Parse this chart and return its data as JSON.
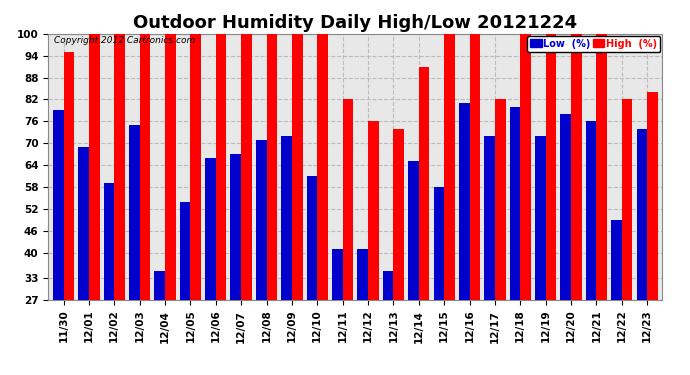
{
  "title": "Outdoor Humidity Daily High/Low 20121224",
  "copyright": "Copyright 2012 Cartronics.com",
  "dates": [
    "11/30",
    "12/01",
    "12/02",
    "12/03",
    "12/04",
    "12/05",
    "12/06",
    "12/07",
    "12/08",
    "12/09",
    "12/10",
    "12/11",
    "12/12",
    "12/13",
    "12/14",
    "12/15",
    "12/16",
    "12/17",
    "12/18",
    "12/19",
    "12/20",
    "12/21",
    "12/22",
    "12/23"
  ],
  "high": [
    95,
    100,
    100,
    100,
    100,
    100,
    100,
    100,
    100,
    100,
    100,
    82,
    76,
    74,
    91,
    100,
    100,
    82,
    100,
    100,
    100,
    100,
    82,
    84
  ],
  "low": [
    79,
    69,
    59,
    75,
    35,
    54,
    66,
    67,
    71,
    72,
    61,
    41,
    41,
    35,
    65,
    58,
    81,
    72,
    80,
    72,
    78,
    76,
    49,
    74
  ],
  "high_color": "#ff0000",
  "low_color": "#0000cc",
  "bg_color": "#ffffff",
  "plot_bg_color": "#e8e8e8",
  "grid_color": "#bbbbbb",
  "yticks": [
    27,
    33,
    40,
    46,
    52,
    58,
    64,
    70,
    76,
    82,
    88,
    94,
    100
  ],
  "ymin": 27,
  "ymax": 100,
  "bar_width": 0.42,
  "title_fontsize": 13,
  "tick_fontsize": 7.5,
  "legend_low_label": "Low  (%)",
  "legend_high_label": "High  (%)"
}
